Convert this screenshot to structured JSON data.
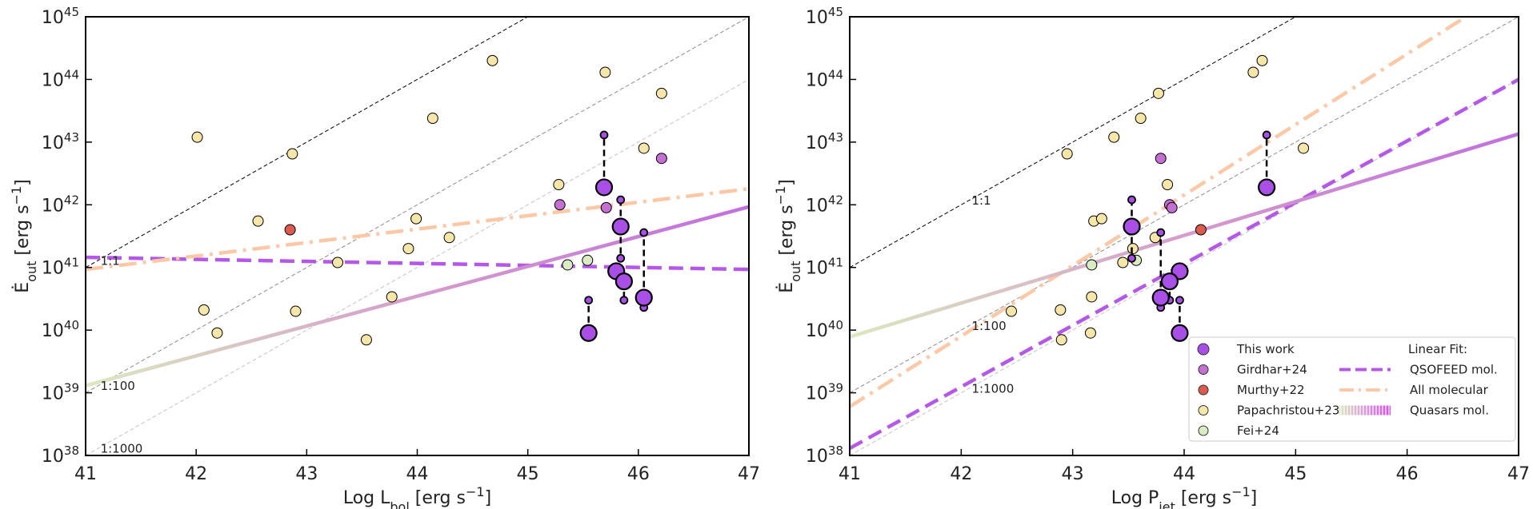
{
  "chart_data": [
    {
      "type": "scatter",
      "xlabel": [
        "Log L",
        "bol",
        " [erg s",
        "−1",
        "]"
      ],
      "ylabel": [
        "Ė",
        "out",
        " [erg s",
        "−1",
        "]"
      ],
      "xlim": [
        41,
        47
      ],
      "ylim": [
        1e+38,
        1e+45
      ],
      "yscale": "log",
      "xticks": [
        41,
        42,
        43,
        44,
        45,
        46,
        47
      ],
      "yticks": [
        {
          "value": 1e+38,
          "label": "10",
          "sup": "38"
        },
        {
          "value": 1e+39,
          "label": "10",
          "sup": "39"
        },
        {
          "value": 1e+40,
          "label": "10",
          "sup": "40"
        },
        {
          "value": 1e+41,
          "label": "10",
          "sup": "41"
        },
        {
          "value": 1e+42,
          "label": "10",
          "sup": "42"
        },
        {
          "value": 1e+43,
          "label": "10",
          "sup": "43"
        },
        {
          "value": 1e+44,
          "label": "10",
          "sup": "44"
        },
        {
          "value": 1e+45,
          "label": "10",
          "sup": "45"
        }
      ],
      "ratio_lines": [
        {
          "label": "1:1",
          "log_ratio": 0,
          "color": "#000000"
        },
        {
          "label": "1:100",
          "log_ratio": -2,
          "color": "#8c8c8c"
        },
        {
          "label": "1:1000",
          "log_ratio": -3,
          "color": "#c4c4c4"
        }
      ],
      "fits": [
        {
          "x": [
            41,
            47
          ],
          "y": [
            1.45e+41,
            9.3e+40
          ],
          "color": "#b558ea",
          "style": "dashed"
        },
        {
          "x": [
            41,
            47
          ],
          "y": [
            9.3e+40,
            1.8e+42
          ],
          "color": "#fcc8a6",
          "style": "dashdot"
        },
        {
          "x": [
            41,
            47
          ],
          "y": [
            1.3e+39,
            9.3e+41
          ],
          "colors": [
            "#dbe8be",
            "#c070de"
          ],
          "style": "solid"
        }
      ],
      "series": [
        {
          "color": "#f6e7a8",
          "marker": "normal",
          "x": [
            42.01,
            42.87,
            44.68,
            44.14,
            45.7,
            46.21,
            46.05,
            45.28,
            42.56,
            43.99,
            43.92,
            44.29,
            43.28,
            42.07,
            42.19,
            42.9,
            43.77,
            43.54
          ],
          "values": [
            1.2e+43,
            6.5e+42,
            2e+44,
            2.4e+43,
            1.3e+44,
            6e+43,
            8e+42,
            2.1e+42,
            5.5e+41,
            6e+41,
            2e+41,
            3e+41,
            1.2e+41,
            2.1e+40,
            9e+39,
            2e+40,
            3.4e+40,
            7e+39
          ]
        },
        {
          "color": "#c46fd2",
          "marker": "normal",
          "x": [
            45.29,
            45.71,
            46.21
          ],
          "values": [
            1e+42,
            9e+41,
            5.5e+42
          ]
        },
        {
          "color": "#dd5a4e",
          "marker": "normal",
          "x": [
            42.85
          ],
          "values": [
            4e+41
          ]
        },
        {
          "color": "#d9ecc3",
          "marker": "normal",
          "x": [
            45.36,
            45.54
          ],
          "values": [
            1.1e+41,
            1.3e+41
          ]
        },
        {
          "color": "#a94ee6",
          "marker": "large",
          "x": [
            45.55,
            45.69,
            45.84,
            45.8,
            45.87,
            46.05
          ],
          "values": [
            9e+39,
            1.9e+42,
            4.5e+41,
            8.7e+40,
            6e+40,
            3.3e+40
          ],
          "upper": [
            3e+40,
            1.3e+43,
            1.2e+42,
            null,
            null,
            3.6e+41
          ],
          "lower": [
            null,
            null,
            1.4e+41,
            null,
            3e+40,
            2.3e+40
          ]
        }
      ]
    },
    {
      "type": "scatter",
      "xlabel": [
        "Log P",
        "jet",
        " [erg s",
        "−1",
        "]"
      ],
      "ylabel": [
        "Ė",
        "out",
        " [erg s",
        "−1",
        "]"
      ],
      "xlim": [
        41,
        47
      ],
      "ylim": [
        1e+38,
        1e+45
      ],
      "yscale": "log",
      "xticks": [
        41,
        42,
        43,
        44,
        45,
        46,
        47
      ],
      "yticks": [
        {
          "value": 1e+38,
          "label": "10",
          "sup": "38"
        },
        {
          "value": 1e+39,
          "label": "10",
          "sup": "39"
        },
        {
          "value": 1e+40,
          "label": "10",
          "sup": "40"
        },
        {
          "value": 1e+41,
          "label": "10",
          "sup": "41"
        },
        {
          "value": 1e+42,
          "label": "10",
          "sup": "42"
        },
        {
          "value": 1e+43,
          "label": "10",
          "sup": "43"
        },
        {
          "value": 1e+44,
          "label": "10",
          "sup": "44"
        },
        {
          "value": 1e+45,
          "label": "10",
          "sup": "45"
        }
      ],
      "ratio_lines": [
        {
          "label": "1:1",
          "log_ratio": 0,
          "color": "#000000"
        },
        {
          "label": "1:100",
          "log_ratio": -2,
          "color": "#8c8c8c"
        },
        {
          "label": "1:1000",
          "log_ratio": -3,
          "color": "#c4c4c4"
        }
      ],
      "legend": "lower right",
      "legend_title": "Linear Fit:",
      "fits": [
        {
          "name": "QSOFEED mol.",
          "x": [
            41,
            47
          ],
          "y": [
            1.3e+38,
            1e+44
          ],
          "color": "#b558ea",
          "style": "dashed"
        },
        {
          "name": "All molecular",
          "x": [
            41,
            47
          ],
          "y": [
            6e+38,
            3.4e+45
          ],
          "color": "#fcc8a6",
          "style": "dashdot"
        },
        {
          "name": "Quasars mol.",
          "x": [
            41,
            47
          ],
          "y": [
            7.8e+39,
            1.35e+43
          ],
          "colors": [
            "#dbe8be",
            "#c070de"
          ],
          "style": "solid"
        }
      ],
      "series": [
        {
          "name": "Papachristou+23",
          "color": "#f6e7a8",
          "marker": "normal",
          "x": [
            43.37,
            42.95,
            44.7,
            43.61,
            44.62,
            43.77,
            45.07,
            43.85,
            43.19,
            43.26,
            43.54,
            43.74,
            43.45,
            42.89,
            43.16,
            42.45,
            43.17,
            42.9
          ],
          "values": [
            1.2e+43,
            6.5e+42,
            2e+44,
            2.4e+43,
            1.3e+44,
            6e+43,
            8e+42,
            2.1e+42,
            5.5e+41,
            6e+41,
            2e+41,
            3e+41,
            1.2e+41,
            2.1e+40,
            9e+39,
            2e+40,
            3.4e+40,
            7e+39
          ]
        },
        {
          "name": "Girdhar+24",
          "color": "#c46fd2",
          "marker": "normal",
          "x": [
            43.87,
            43.89,
            43.79
          ],
          "values": [
            1e+42,
            9e+41,
            5.5e+42
          ]
        },
        {
          "name": "Murthy+22",
          "color": "#dd5a4e",
          "marker": "normal",
          "x": [
            44.15
          ],
          "values": [
            4e+41
          ]
        },
        {
          "name": "Fei+24",
          "color": "#d9ecc3",
          "marker": "normal",
          "x": [
            43.17,
            43.57
          ],
          "values": [
            1.1e+41,
            1.3e+41
          ]
        },
        {
          "name": "This work",
          "color": "#a94ee6",
          "marker": "large",
          "x": [
            43.96,
            44.74,
            43.53,
            43.96,
            43.87,
            43.79
          ],
          "values": [
            9e+39,
            1.9e+42,
            4.5e+41,
            8.7e+40,
            6e+40,
            3.3e+40
          ],
          "upper": [
            3e+40,
            1.3e+43,
            1.2e+42,
            null,
            null,
            3.6e+41
          ],
          "lower": [
            null,
            null,
            1.4e+41,
            null,
            3e+40,
            2.3e+40
          ]
        }
      ]
    }
  ]
}
